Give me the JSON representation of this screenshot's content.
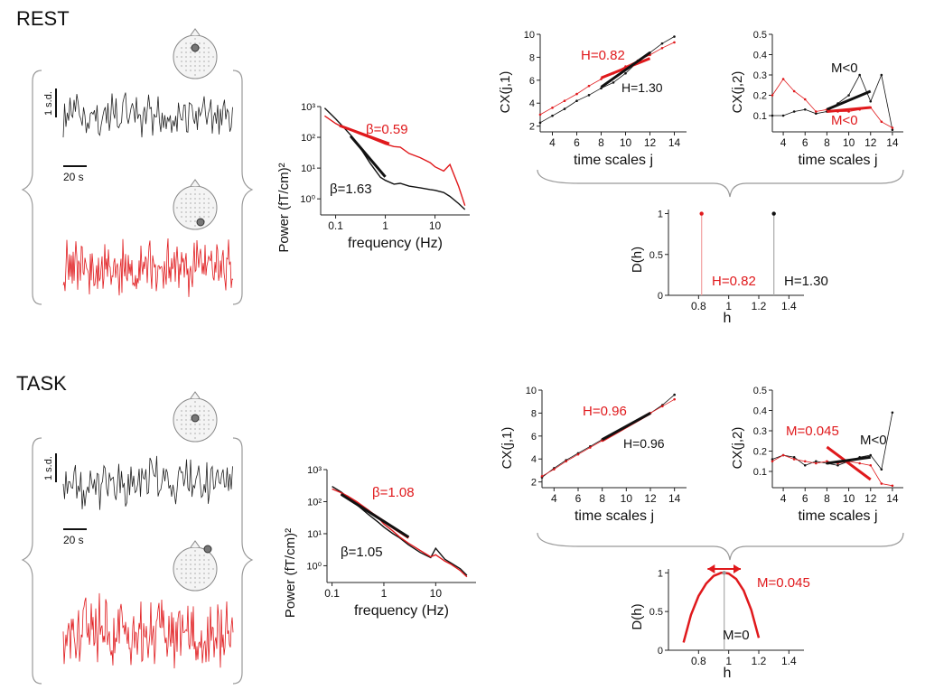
{
  "colors": {
    "black": "#111111",
    "red": "#e0191c",
    "grey": "#999999",
    "head": "#f4f4f4"
  },
  "rows": [
    {
      "label": "REST",
      "series_ylabel": "1 s.d.",
      "series_xlabel": "20 s",
      "spectrum": {
        "ylabel": "Power (fT/cm)²",
        "xlabel": "frequency (Hz)",
        "beta_red": "β=0.59",
        "beta_black": "β=1.63"
      },
      "c1": {
        "ylabel": "C",
        "ysub": "X",
        "yarg": "(j,1)",
        "xlabel": "time scales j",
        "label_red": "H=0.82",
        "label_black": "H=1.30"
      },
      "c2": {
        "ylabel": "C",
        "ysub": "X",
        "yarg": "(j,2)",
        "xlabel": "time scales j",
        "label_red": "M<0",
        "label_black": "M<0"
      },
      "dh": {
        "ylabel": "D(h)",
        "xlabel": "h",
        "label_red": "H=0.82",
        "label_black": "H=1.30"
      }
    },
    {
      "label": "TASK",
      "series_ylabel": "1 s.d.",
      "series_xlabel": "20 s",
      "spectrum": {
        "ylabel": "Power (fT/cm)²",
        "xlabel": "frequency (Hz)",
        "beta_red": "β=1.08",
        "beta_black": "β=1.05"
      },
      "c1": {
        "ylabel": "C",
        "ysub": "X",
        "yarg": "(j,1)",
        "xlabel": "time scales j",
        "label_red": "H=0.96",
        "label_black": "H=0.96"
      },
      "c2": {
        "ylabel": "C",
        "ysub": "X",
        "yarg": "(j,2)",
        "xlabel": "time scales j",
        "label_red": "M=0.045",
        "label_black": "M<0"
      },
      "dh": {
        "ylabel": "D(h)",
        "xlabel": "h",
        "label_red": "M=0.045",
        "label_black": "M=0"
      }
    }
  ],
  "chart_data": [
    {
      "type": "line",
      "panel": "REST power spectrum",
      "xlabel": "frequency (Hz)",
      "ylabel": "Power (fT/cm)²",
      "xscale": "log",
      "yscale": "log",
      "xlim": [
        0.05,
        50
      ],
      "ylim": [
        0.3,
        1000
      ],
      "xticks": [
        0.1,
        1,
        10
      ],
      "xticklabels": [
        "0.1",
        "1",
        "10"
      ],
      "yticks": [
        1,
        10,
        100,
        1000
      ],
      "yticklabels": [
        "10⁰",
        "10¹",
        "10²",
        "10³"
      ],
      "series": [
        {
          "color": "black",
          "x": [
            0.06,
            0.1,
            0.15,
            0.2,
            0.3,
            0.5,
            0.8,
            1.0,
            1.5,
            2,
            3,
            5,
            8,
            10,
            15,
            20,
            30,
            40
          ],
          "y": [
            900,
            400,
            200,
            120,
            50,
            14,
            5,
            4,
            3,
            3.2,
            2.6,
            2.3,
            2,
            1.9,
            1.6,
            1.2,
            0.7,
            0.45
          ]
        },
        {
          "color": "red",
          "x": [
            0.06,
            0.1,
            0.15,
            0.2,
            0.3,
            0.5,
            0.8,
            1.0,
            1.5,
            2,
            3,
            5,
            8,
            10,
            15,
            20,
            30,
            40
          ],
          "y": [
            500,
            280,
            200,
            170,
            130,
            95,
            70,
            60,
            50,
            48,
            30,
            22,
            15,
            11,
            8,
            13,
            2.5,
            0.6
          ]
        }
      ],
      "fits": [
        {
          "color": "red",
          "label": "β=0.59",
          "x": [
            0.12,
            1.2
          ],
          "y": [
            240,
            62
          ]
        },
        {
          "color": "black",
          "label": "β=1.63",
          "x": [
            0.2,
            1.0
          ],
          "y": [
            110,
            5.2
          ]
        }
      ]
    },
    {
      "type": "line",
      "panel": "REST C(j,1)",
      "xlabel": "time scales j",
      "ylabel": "C(j,1)",
      "xlim": [
        3,
        15
      ],
      "ylim": [
        1.5,
        10
      ],
      "xticks": [
        4,
        6,
        8,
        10,
        12,
        14
      ],
      "yticks": [
        2,
        4,
        6,
        8,
        10
      ],
      "series": [
        {
          "color": "black",
          "x": [
            3,
            4,
            5,
            6,
            7,
            8,
            9,
            10,
            11,
            12,
            13,
            14
          ],
          "y": [
            2.3,
            2.9,
            3.5,
            4.2,
            4.7,
            5.3,
            5.8,
            6.6,
            7.6,
            8.4,
            9.2,
            9.8
          ]
        },
        {
          "color": "red",
          "x": [
            3,
            4,
            5,
            6,
            7,
            8,
            9,
            10,
            11,
            12,
            13,
            14
          ],
          "y": [
            3.0,
            3.6,
            4.2,
            4.8,
            5.5,
            6.1,
            6.6,
            7.2,
            7.7,
            8.2,
            8.8,
            9.3
          ]
        }
      ],
      "fits": [
        {
          "color": "red",
          "label": "H=0.82",
          "x": [
            8,
            12
          ],
          "y": [
            6.2,
            7.9
          ]
        },
        {
          "color": "black",
          "label": "H=1.30",
          "x": [
            8,
            12
          ],
          "y": [
            5.4,
            8.4
          ]
        }
      ]
    },
    {
      "type": "line",
      "panel": "REST C(j,2)",
      "xlabel": "time scales j",
      "ylabel": "C(j,2)",
      "xlim": [
        3,
        15
      ],
      "ylim": [
        0.02,
        0.5
      ],
      "xticks": [
        4,
        6,
        8,
        10,
        12,
        14
      ],
      "yticks": [
        0.1,
        0.2,
        0.3,
        0.4,
        0.5
      ],
      "series": [
        {
          "color": "black",
          "x": [
            3,
            4,
            5,
            6,
            7,
            8,
            9,
            10,
            11,
            12,
            13,
            14
          ],
          "y": [
            0.1,
            0.1,
            0.12,
            0.13,
            0.11,
            0.12,
            0.16,
            0.2,
            0.3,
            0.17,
            0.3,
            0.03
          ]
        },
        {
          "color": "red",
          "x": [
            3,
            4,
            5,
            6,
            7,
            8,
            9,
            10,
            11,
            12,
            13,
            14
          ],
          "y": [
            0.2,
            0.28,
            0.22,
            0.18,
            0.12,
            0.13,
            0.12,
            0.12,
            0.13,
            0.14,
            0.07,
            0.04
          ]
        }
      ],
      "fits": [
        {
          "color": "black",
          "label": "M<0",
          "x": [
            8,
            12
          ],
          "y": [
            0.13,
            0.22
          ]
        },
        {
          "color": "red",
          "label": "M<0",
          "x": [
            8,
            12
          ],
          "y": [
            0.12,
            0.14
          ]
        }
      ]
    },
    {
      "type": "line",
      "panel": "REST D(h)",
      "xlabel": "h",
      "ylabel": "D(h)",
      "xlim": [
        0.6,
        1.5
      ],
      "ylim": [
        0,
        1.05
      ],
      "xticks": [
        0.8,
        1,
        1.2,
        1.4
      ],
      "yticks": [
        0,
        0.5,
        1
      ],
      "series": [
        {
          "color": "red",
          "x": [
            0.82,
            0.82
          ],
          "y": [
            0,
            1
          ]
        },
        {
          "color": "black",
          "x": [
            1.3,
            1.3
          ],
          "y": [
            0,
            1
          ]
        }
      ]
    },
    {
      "type": "line",
      "panel": "TASK power spectrum",
      "xlabel": "frequency (Hz)",
      "ylabel": "Power (fT/cm)²",
      "xscale": "log",
      "yscale": "log",
      "xlim": [
        0.08,
        60
      ],
      "ylim": [
        0.3,
        1000
      ],
      "xticks": [
        0.1,
        1,
        10
      ],
      "xticklabels": [
        "0.1",
        "1",
        "10"
      ],
      "yticks": [
        1,
        10,
        100,
        1000
      ],
      "yticklabels": [
        "10⁰",
        "10¹",
        "10²",
        "10³"
      ],
      "series": [
        {
          "color": "black",
          "x": [
            0.1,
            0.15,
            0.2,
            0.3,
            0.5,
            0.8,
            1.0,
            1.5,
            2,
            3,
            5,
            8,
            10,
            15,
            20,
            30,
            40
          ],
          "y": [
            300,
            200,
            140,
            80,
            40,
            22,
            16,
            10,
            7.5,
            4.5,
            2.6,
            1.8,
            3.5,
            1.6,
            1.2,
            0.8,
            0.5
          ]
        },
        {
          "color": "red",
          "x": [
            0.1,
            0.15,
            0.2,
            0.3,
            0.5,
            0.8,
            1.0,
            1.5,
            2,
            3,
            5,
            8,
            10,
            15,
            20,
            30,
            40
          ],
          "y": [
            250,
            190,
            150,
            100,
            55,
            30,
            20,
            12,
            8,
            5,
            3,
            1.9,
            2.2,
            1.4,
            1.1,
            0.7,
            0.45
          ]
        }
      ],
      "fits": [
        {
          "color": "red",
          "label": "β=1.08",
          "x": [
            0.15,
            3
          ],
          "y": [
            180,
            7.5
          ]
        },
        {
          "color": "black",
          "label": "β=1.05",
          "x": [
            0.15,
            3
          ],
          "y": [
            170,
            7.8
          ]
        }
      ]
    },
    {
      "type": "line",
      "panel": "TASK C(j,1)",
      "xlabel": "time scales j",
      "ylabel": "C(j,1)",
      "xlim": [
        3,
        15
      ],
      "ylim": [
        1.5,
        10
      ],
      "xticks": [
        4,
        6,
        8,
        10,
        12,
        14
      ],
      "yticks": [
        2,
        4,
        6,
        8,
        10
      ],
      "series": [
        {
          "color": "black",
          "x": [
            3,
            4,
            5,
            6,
            7,
            8,
            9,
            10,
            11,
            12,
            13,
            14
          ],
          "y": [
            2.4,
            3.2,
            3.9,
            4.5,
            5.1,
            5.7,
            6.2,
            6.8,
            7.4,
            8.0,
            8.7,
            9.6
          ]
        },
        {
          "color": "red",
          "x": [
            3,
            4,
            5,
            6,
            7,
            8,
            9,
            10,
            11,
            12,
            13,
            14
          ],
          "y": [
            2.5,
            3.1,
            3.8,
            4.4,
            5.0,
            5.6,
            6.2,
            6.8,
            7.4,
            8.0,
            8.6,
            9.2
          ]
        }
      ],
      "fits": [
        {
          "color": "red",
          "label": "H=0.96",
          "x": [
            8,
            12
          ],
          "y": [
            5.6,
            8.0
          ]
        },
        {
          "color": "black",
          "label": "H=0.96",
          "x": [
            8,
            12
          ],
          "y": [
            5.7,
            8.0
          ]
        }
      ]
    },
    {
      "type": "line",
      "panel": "TASK C(j,2)",
      "xlabel": "time scales j",
      "ylabel": "C(j,2)",
      "xlim": [
        3,
        15
      ],
      "ylim": [
        0.02,
        0.5
      ],
      "xticks": [
        4,
        6,
        8,
        10,
        12,
        14
      ],
      "yticks": [
        0.1,
        0.2,
        0.3,
        0.4,
        0.5
      ],
      "series": [
        {
          "color": "black",
          "x": [
            3,
            4,
            5,
            6,
            7,
            8,
            9,
            10,
            11,
            12,
            13,
            14
          ],
          "y": [
            0.16,
            0.18,
            0.17,
            0.13,
            0.15,
            0.14,
            0.13,
            0.15,
            0.17,
            0.18,
            0.11,
            0.39
          ]
        },
        {
          "color": "red",
          "x": [
            3,
            4,
            5,
            6,
            7,
            8,
            9,
            10,
            11,
            12,
            13,
            14
          ],
          "y": [
            0.15,
            0.18,
            0.16,
            0.15,
            0.14,
            0.15,
            0.14,
            0.15,
            0.14,
            0.13,
            0.04,
            0.03
          ]
        }
      ],
      "fits": [
        {
          "color": "red",
          "label": "M=0.045",
          "x": [
            8,
            12
          ],
          "y": [
            0.22,
            0.06
          ]
        },
        {
          "color": "black",
          "label": "M<0",
          "x": [
            8,
            12
          ],
          "y": [
            0.14,
            0.17
          ]
        }
      ]
    },
    {
      "type": "line",
      "panel": "TASK D(h)",
      "xlabel": "h",
      "ylabel": "D(h)",
      "xlim": [
        0.6,
        1.5
      ],
      "ylim": [
        0,
        1.05
      ],
      "xticks": [
        0.8,
        1,
        1.2,
        1.4
      ],
      "yticks": [
        0,
        0.5,
        1
      ],
      "series": [
        {
          "color": "red",
          "x": [
            0.7,
            0.75,
            0.8,
            0.85,
            0.9,
            0.95,
            0.97,
            1.0,
            1.05,
            1.1,
            1.15,
            1.2
          ],
          "y": [
            0.1,
            0.46,
            0.7,
            0.86,
            0.96,
            1.0,
            1.0,
            0.99,
            0.92,
            0.77,
            0.52,
            0.16
          ]
        },
        {
          "color": "grey",
          "x": [
            0.97,
            0.97
          ],
          "y": [
            0,
            1
          ]
        }
      ],
      "markers": [
        {
          "label": "M=0.045",
          "x_range": [
            0.86,
            1.08
          ],
          "y": 1.05
        }
      ]
    }
  ]
}
